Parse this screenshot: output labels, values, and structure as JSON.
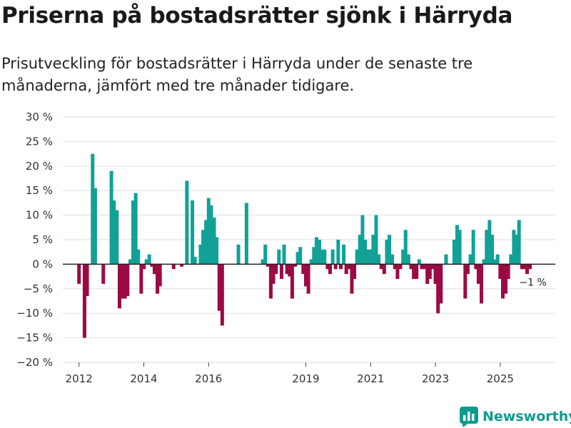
{
  "header": {
    "title": "Priserna på bostadsrätter sjönk i Härryda",
    "subtitle": "Prisutveckling för bostadsrätter i Härryda under de senaste tre månaderna, jämfört med tre månader tidigare."
  },
  "brand": {
    "name": "Newsworthy",
    "logo_icon": "bar-chart-logo-icon"
  },
  "colors": {
    "positive": "#11a197",
    "negative": "#9b0a45",
    "grid": "#dddddd",
    "zero": "#222222"
  },
  "chart_data": {
    "type": "bar",
    "title": "Priserna på bostadsrätter sjönk i Härryda",
    "xlabel": "",
    "ylabel": "",
    "ylim": [
      -20,
      30
    ],
    "yticks": [
      -20,
      -15,
      -10,
      -5,
      0,
      5,
      10,
      15,
      20,
      25,
      30
    ],
    "ytick_labels": [
      "−20 %",
      "−15 %",
      "−10 %",
      "−5 %",
      "0 %",
      "5 %",
      "10 %",
      "15 %",
      "20 %",
      "25 %",
      "30 %"
    ],
    "xlim": [
      2011.5,
      2026.7
    ],
    "xticks": [
      2012,
      2014,
      2016,
      2019,
      2021,
      2023,
      2025
    ],
    "xtick_labels": [
      "2012",
      "2014",
      "2016",
      "2019",
      "2021",
      "2023",
      "2025"
    ],
    "annotation": {
      "text": "−1 %",
      "x": 2025.92,
      "y": -1
    },
    "series": [
      {
        "name": "Prisutveckling",
        "points": [
          [
            2012.0,
            -4
          ],
          [
            2012.17,
            -15
          ],
          [
            2012.25,
            -6.5
          ],
          [
            2012.42,
            22.5
          ],
          [
            2012.5,
            15.5
          ],
          [
            2012.75,
            -4
          ],
          [
            2013.0,
            19
          ],
          [
            2013.08,
            13
          ],
          [
            2013.17,
            11
          ],
          [
            2013.25,
            -9
          ],
          [
            2013.33,
            -7
          ],
          [
            2013.42,
            -7
          ],
          [
            2013.5,
            -6.5
          ],
          [
            2013.58,
            1
          ],
          [
            2013.67,
            13
          ],
          [
            2013.75,
            14.5
          ],
          [
            2013.83,
            3
          ],
          [
            2013.92,
            -6
          ],
          [
            2014.0,
            -1
          ],
          [
            2014.08,
            1
          ],
          [
            2014.17,
            2
          ],
          [
            2014.25,
            -0.5
          ],
          [
            2014.33,
            -2
          ],
          [
            2014.42,
            -6
          ],
          [
            2014.5,
            -4.5
          ],
          [
            2014.92,
            -1
          ],
          [
            2015.17,
            -0.5
          ],
          [
            2015.33,
            17
          ],
          [
            2015.5,
            13
          ],
          [
            2015.58,
            1.5
          ],
          [
            2015.75,
            4
          ],
          [
            2015.83,
            7
          ],
          [
            2015.92,
            9
          ],
          [
            2016.0,
            13.5
          ],
          [
            2016.08,
            12
          ],
          [
            2016.17,
            9.5
          ],
          [
            2016.25,
            5.5
          ],
          [
            2016.33,
            -9.5
          ],
          [
            2016.42,
            -12.5
          ],
          [
            2016.92,
            4
          ],
          [
            2017.17,
            12.5
          ],
          [
            2017.67,
            1
          ],
          [
            2017.75,
            4
          ],
          [
            2017.83,
            -0.5
          ],
          [
            2017.92,
            -7
          ],
          [
            2018.0,
            -4
          ],
          [
            2018.08,
            -2
          ],
          [
            2018.17,
            3
          ],
          [
            2018.25,
            -3
          ],
          [
            2018.33,
            4
          ],
          [
            2018.42,
            -2
          ],
          [
            2018.5,
            -2.5
          ],
          [
            2018.58,
            -7
          ],
          [
            2018.67,
            -0.5
          ],
          [
            2018.75,
            2.5
          ],
          [
            2018.83,
            3.5
          ],
          [
            2018.92,
            -2
          ],
          [
            2019.0,
            -4.5
          ],
          [
            2019.08,
            -6
          ],
          [
            2019.17,
            1
          ],
          [
            2019.25,
            3.5
          ],
          [
            2019.33,
            5.5
          ],
          [
            2019.42,
            5
          ],
          [
            2019.5,
            3
          ],
          [
            2019.58,
            3
          ],
          [
            2019.67,
            -1
          ],
          [
            2019.75,
            -2
          ],
          [
            2019.83,
            3
          ],
          [
            2019.92,
            -1
          ],
          [
            2020.0,
            5
          ],
          [
            2020.08,
            -1
          ],
          [
            2020.17,
            4
          ],
          [
            2020.25,
            -2
          ],
          [
            2020.33,
            -1
          ],
          [
            2020.42,
            -6
          ],
          [
            2020.5,
            -3
          ],
          [
            2020.58,
            3
          ],
          [
            2020.67,
            6
          ],
          [
            2020.75,
            10
          ],
          [
            2020.83,
            5
          ],
          [
            2020.92,
            3
          ],
          [
            2021.0,
            3
          ],
          [
            2021.08,
            6
          ],
          [
            2021.17,
            10
          ],
          [
            2021.25,
            2
          ],
          [
            2021.33,
            -1
          ],
          [
            2021.42,
            -2
          ],
          [
            2021.5,
            5
          ],
          [
            2021.58,
            6
          ],
          [
            2021.67,
            2
          ],
          [
            2021.75,
            -1
          ],
          [
            2021.83,
            -3
          ],
          [
            2021.92,
            -1
          ],
          [
            2022.0,
            3
          ],
          [
            2022.08,
            7
          ],
          [
            2022.17,
            2
          ],
          [
            2022.25,
            -1
          ],
          [
            2022.33,
            -3
          ],
          [
            2022.42,
            -3
          ],
          [
            2022.5,
            1
          ],
          [
            2022.58,
            -1
          ],
          [
            2022.67,
            -1
          ],
          [
            2022.75,
            -4
          ],
          [
            2022.83,
            -3
          ],
          [
            2022.92,
            -1
          ],
          [
            2023.0,
            -4
          ],
          [
            2023.08,
            -10
          ],
          [
            2023.17,
            -8
          ],
          [
            2023.33,
            2
          ],
          [
            2023.58,
            5
          ],
          [
            2023.67,
            8
          ],
          [
            2023.75,
            7
          ],
          [
            2023.92,
            -7
          ],
          [
            2024.0,
            -2
          ],
          [
            2024.08,
            2
          ],
          [
            2024.17,
            7
          ],
          [
            2024.25,
            -1
          ],
          [
            2024.33,
            -4
          ],
          [
            2024.42,
            -8
          ],
          [
            2024.5,
            1
          ],
          [
            2024.58,
            7
          ],
          [
            2024.67,
            9
          ],
          [
            2024.75,
            6
          ],
          [
            2024.83,
            1
          ],
          [
            2024.92,
            2
          ],
          [
            2025.0,
            -3
          ],
          [
            2025.08,
            -7
          ],
          [
            2025.17,
            -6
          ],
          [
            2025.25,
            -3
          ],
          [
            2025.33,
            2
          ],
          [
            2025.42,
            7
          ],
          [
            2025.5,
            6
          ],
          [
            2025.58,
            9
          ],
          [
            2025.67,
            -1
          ],
          [
            2025.75,
            -1
          ],
          [
            2025.83,
            -2
          ],
          [
            2025.92,
            -1
          ]
        ]
      }
    ]
  }
}
